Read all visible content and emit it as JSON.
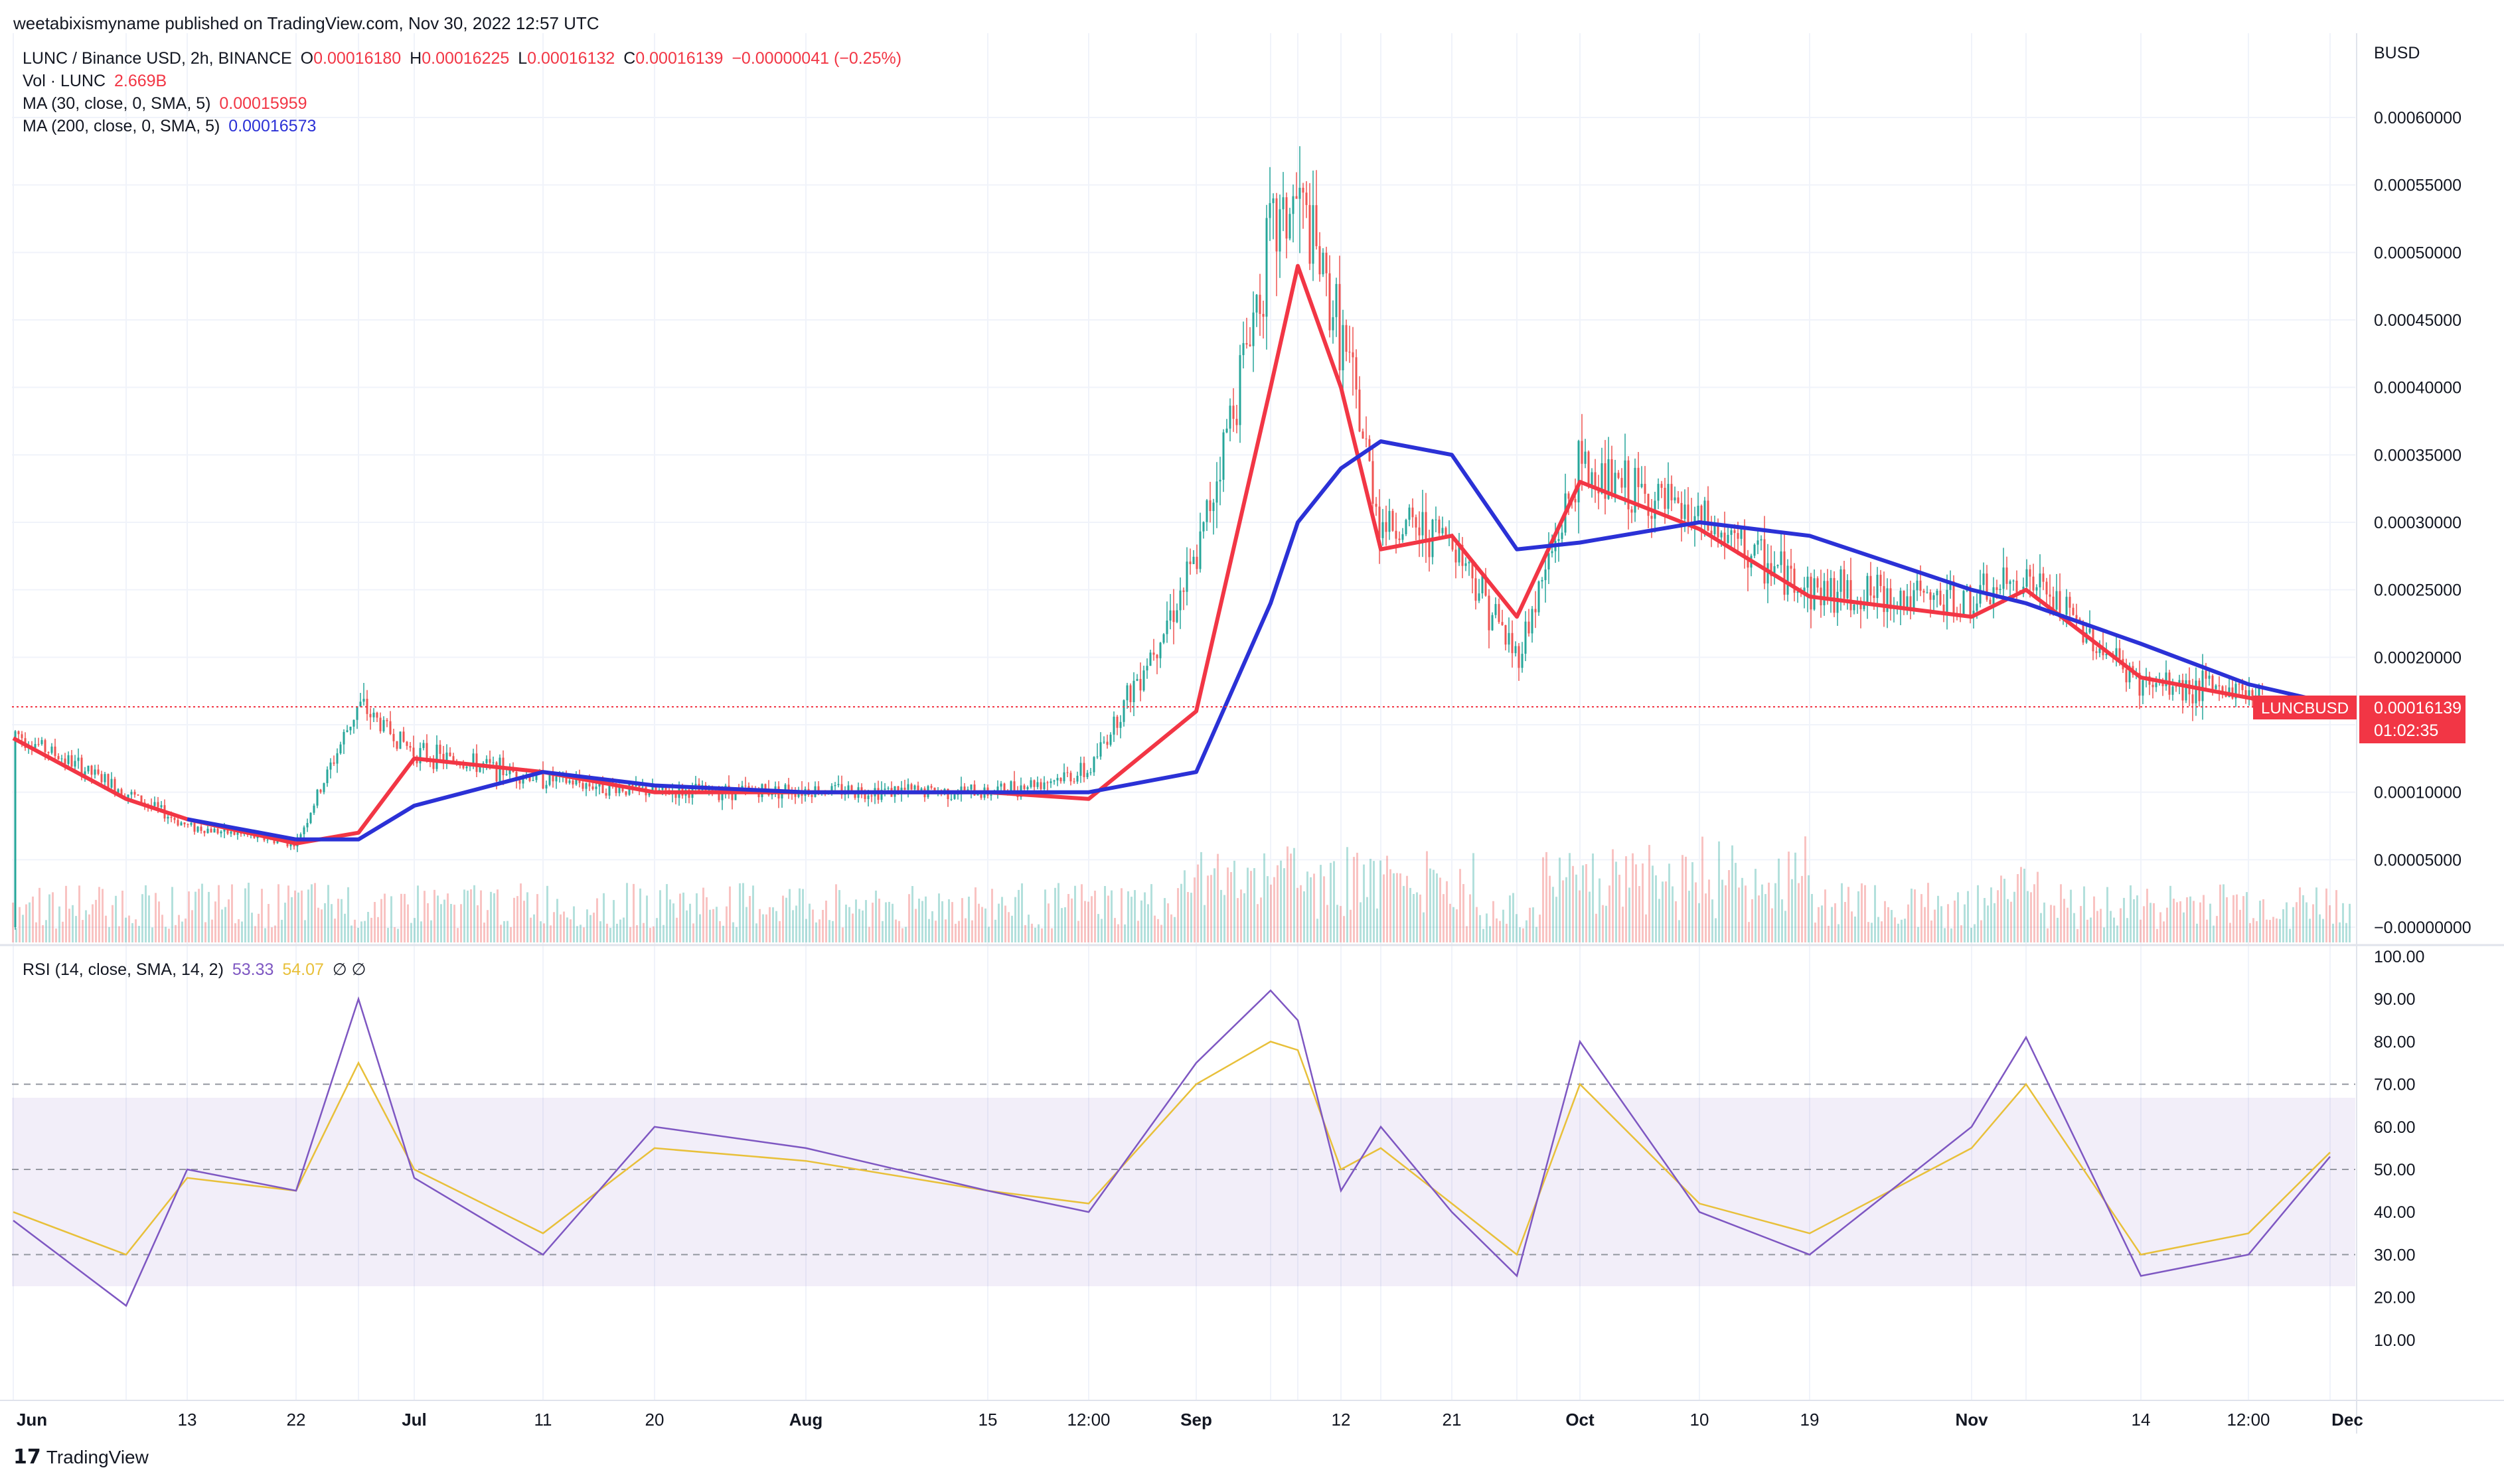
{
  "header": {
    "published": "weetabixismyname published on TradingView.com, Nov 30, 2022 12:57 UTC"
  },
  "legend": {
    "symbol": "LUNC / Binance USD, 2h, BINANCE",
    "o_label": "O",
    "o": "0.00016180",
    "h_label": "H",
    "h": "0.00016225",
    "l_label": "L",
    "l": "0.00016132",
    "c_label": "C",
    "c": "0.00016139",
    "change": "−0.00000041 (−0.25%)",
    "vol_label": "Vol · LUNC",
    "vol": "2.669B",
    "ma30_label": "MA (30, close, 0, SMA, 5)",
    "ma30": "0.00015959",
    "ma200_label": "MA (200, close, 0, SMA, 5)",
    "ma200": "0.00016573",
    "rsi_label": "RSI (14, close, SMA, 14, 2)",
    "rsi": "53.33",
    "rsi_ma": "54.07",
    "rsi_extra": "∅  ∅"
  },
  "price_axis": {
    "currency": "BUSD",
    "ticks": [
      "0.00060000",
      "0.00055000",
      "0.00050000",
      "0.00045000",
      "0.00040000",
      "0.00035000",
      "0.00030000",
      "0.00025000",
      "0.00020000",
      "0.00015000",
      "0.00010000",
      "0.00005000",
      "−0.00000000"
    ]
  },
  "price_tag": {
    "symbol": "LUNCBUSD",
    "value": "0.00016139",
    "countdown": "01:02:35"
  },
  "rsi_axis": {
    "ticks": [
      "100.00",
      "90.00",
      "80.00",
      "70.00",
      "60.00",
      "50.00",
      "40.00",
      "30.00",
      "20.00",
      "10.00"
    ]
  },
  "time_axis": {
    "labels": [
      "Jun",
      "13",
      "22",
      "Jul",
      "11",
      "20",
      "Aug",
      "15",
      "12:00",
      "Sep",
      "12",
      "21",
      "Oct",
      "10",
      "19",
      "Nov",
      "14",
      "12:00",
      "Dec"
    ]
  },
  "footer": {
    "logo": "17",
    "brand": "TradingView"
  },
  "colors": {
    "ma30": "#f23645",
    "ma200": "#2b31d6",
    "rsi": "#7e57c2",
    "rsi_ma": "#e8c03a",
    "up": "#26a69a",
    "down": "#ef5350",
    "tag": "#f23645",
    "grid": "#f0f3fa"
  },
  "chart_data": [
    {
      "type": "line",
      "title": "LUNC / Binance USD, 2h, BINANCE",
      "ylabel": "BUSD",
      "ylim": [
        0,
        0.00062
      ],
      "x": [
        "Jun 1",
        "Jun 7",
        "Jun 13",
        "Jun 22",
        "Jun 26",
        "Jul 1",
        "Jul 11",
        "Jul 20",
        "Aug 1",
        "Aug 15",
        "Aug 24",
        "Aug 31",
        "Sep 6",
        "Sep 9",
        "Sep 12",
        "Sep 15",
        "Sep 21",
        "Sep 25",
        "Oct 1",
        "Oct 10",
        "Oct 19",
        "Nov 1",
        "Nov 6",
        "Nov 14",
        "Nov 22",
        "Nov 30"
      ],
      "series": [
        {
          "name": "LUNC / Binance USD",
          "values": [
            0.000145,
            0.0001,
            7.5e-05,
            6.2e-05,
            0.000165,
            0.00013,
            0.00011,
            0.0001,
            0.000102,
            0.0001,
            0.000115,
            0.00027,
            0.00051,
            0.00054,
            0.00044,
            0.0003,
            0.00029,
            0.0002,
            0.00034,
            0.0003,
            0.00025,
            0.00024,
            0.00026,
            0.00018,
            0.000175,
            0.000161
          ]
        },
        {
          "name": "MA (30, close, 0, SMA, 5)",
          "values": [
            0.00014,
            9.5e-05,
            8e-05,
            6.2e-05,
            7e-05,
            0.000125,
            0.000115,
            0.0001,
            0.0001,
            0.0001,
            9.5e-05,
            0.00016,
            0.0004,
            0.00049,
            0.0004,
            0.00028,
            0.00029,
            0.00023,
            0.00033,
            0.000295,
            0.000245,
            0.00023,
            0.00025,
            0.000185,
            0.00017,
            0.00016
          ]
        },
        {
          "name": "MA (200, close, 0, SMA, 5)",
          "values": [
            null,
            null,
            8e-05,
            6.5e-05,
            6.5e-05,
            9e-05,
            0.000115,
            0.000105,
            0.0001,
            0.0001,
            0.0001,
            0.000115,
            0.00024,
            0.0003,
            0.00034,
            0.00036,
            0.00035,
            0.00028,
            0.000285,
            0.0003,
            0.00029,
            0.00025,
            0.00024,
            0.00021,
            0.00018,
            0.000166
          ]
        }
      ]
    },
    {
      "type": "line",
      "title": "RSI (14, close, SMA, 14, 2)",
      "ylim": [
        0,
        100
      ],
      "bands": [
        30,
        50,
        70
      ],
      "x": [
        "Jun 1",
        "Jun 7",
        "Jun 13",
        "Jun 22",
        "Jun 26",
        "Jul 1",
        "Jul 11",
        "Jul 20",
        "Aug 1",
        "Aug 15",
        "Aug 24",
        "Aug 31",
        "Sep 6",
        "Sep 9",
        "Sep 12",
        "Sep 15",
        "Sep 21",
        "Sep 25",
        "Oct 1",
        "Oct 10",
        "Oct 19",
        "Nov 1",
        "Nov 6",
        "Nov 14",
        "Nov 22",
        "Nov 30"
      ],
      "series": [
        {
          "name": "RSI",
          "values": [
            38,
            18,
            50,
            45,
            90,
            48,
            30,
            60,
            55,
            45,
            40,
            75,
            92,
            85,
            45,
            60,
            40,
            25,
            80,
            40,
            30,
            60,
            81,
            25,
            30,
            53
          ]
        },
        {
          "name": "RSI MA",
          "values": [
            40,
            30,
            48,
            45,
            75,
            50,
            35,
            55,
            52,
            45,
            42,
            70,
            80,
            78,
            50,
            55,
            42,
            30,
            70,
            42,
            35,
            55,
            70,
            30,
            35,
            54
          ]
        }
      ]
    }
  ]
}
